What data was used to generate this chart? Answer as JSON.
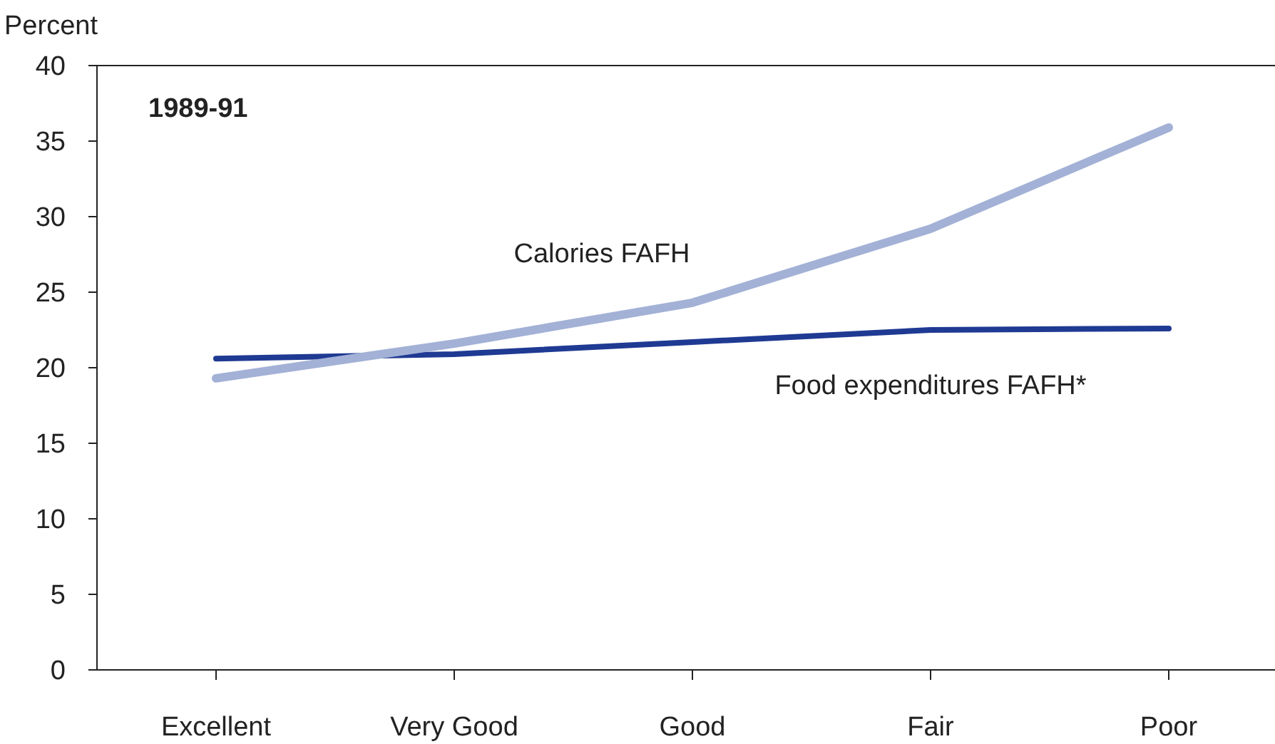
{
  "chart_data": {
    "type": "line",
    "ylabel": "Percent",
    "annotations": [
      "1989-91"
    ],
    "categories": [
      "Excellent",
      "Very Good",
      "Good",
      "Fair",
      "Poor"
    ],
    "ylim": [
      0,
      40
    ],
    "yticks": [
      0,
      5,
      10,
      15,
      20,
      25,
      30,
      35,
      40
    ],
    "grid": false,
    "series": [
      {
        "name": "Food expenditures FAFH*",
        "color": "#1f3a93",
        "values": [
          20.6,
          20.9,
          21.7,
          22.5,
          22.6
        ]
      },
      {
        "name": "Calories FAFH",
        "color": "#a3b1d6",
        "values": [
          19.3,
          21.6,
          24.3,
          29.2,
          35.9
        ]
      }
    ]
  }
}
